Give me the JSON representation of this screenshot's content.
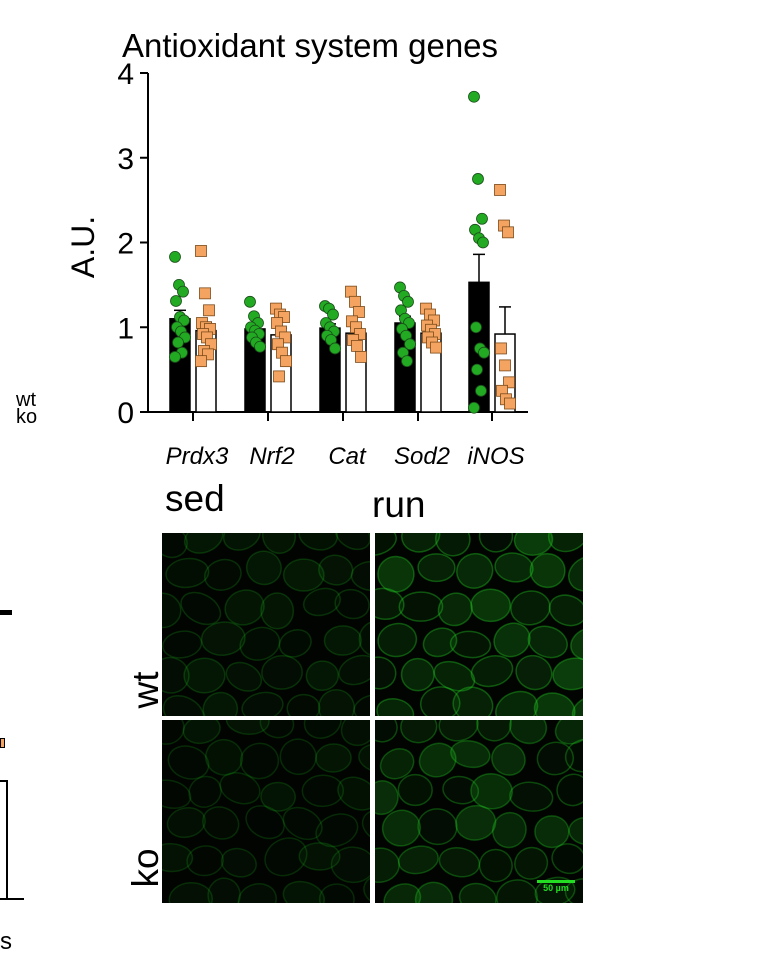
{
  "chart_data": {
    "type": "bar",
    "title": "Antioxidant system genes",
    "ylabel": "A.U.",
    "xlabel": "",
    "ylim": [
      0,
      4
    ],
    "yticks": [
      "0",
      "1",
      "2",
      "3",
      "4"
    ],
    "categories": [
      "Prdx3",
      "Nrf2",
      "Cat",
      "Sod2",
      "iNOS"
    ],
    "grid": false,
    "legend_position": "left",
    "series": [
      {
        "name": "wt",
        "bar_color": "#000000",
        "marker": "circle",
        "marker_color": "#22aa22",
        "means": [
          1.1,
          0.98,
          0.99,
          1.05,
          1.53
        ],
        "errors": [
          0.1,
          0.05,
          0.05,
          0.08,
          0.33
        ],
        "points": [
          [
            1.83,
            1.5,
            1.42,
            1.31,
            1.12,
            1.08,
            1.0,
            0.95,
            0.88,
            0.82,
            0.7,
            0.65
          ],
          [
            1.3,
            1.13,
            1.05,
            1.0,
            0.96,
            0.92,
            0.88,
            0.82,
            0.77
          ],
          [
            1.25,
            1.22,
            1.15,
            1.05,
            1.0,
            0.95,
            0.9,
            0.85,
            0.75
          ],
          [
            1.47,
            1.37,
            1.3,
            1.2,
            1.1,
            1.05,
            0.98,
            0.9,
            0.8,
            0.7,
            0.6
          ],
          [
            3.72,
            2.75,
            2.28,
            2.15,
            2.05,
            2.0,
            1.0,
            0.75,
            0.7,
            0.5,
            0.25,
            0.05
          ]
        ]
      },
      {
        "name": "ko",
        "bar_color": "#ffffff",
        "marker": "square",
        "marker_color": "#f4a460",
        "means": [
          0.96,
          0.91,
          0.93,
          0.93,
          0.92
        ],
        "errors": [
          0.1,
          0.08,
          0.06,
          0.05,
          0.32
        ],
        "points": [
          [
            1.9,
            1.4,
            1.2,
            1.05,
            1.0,
            0.98,
            0.92,
            0.88,
            0.8,
            0.72,
            0.68,
            0.6
          ],
          [
            1.22,
            1.15,
            1.12,
            1.05,
            0.95,
            0.88,
            0.8,
            0.7,
            0.6,
            0.42
          ],
          [
            1.42,
            1.3,
            1.18,
            1.07,
            1.0,
            0.92,
            0.85,
            0.78,
            0.65
          ],
          [
            1.22,
            1.15,
            1.08,
            1.02,
            0.97,
            0.92,
            0.88,
            0.82,
            0.76
          ],
          [
            2.62,
            2.2,
            2.12,
            0.75,
            0.55,
            0.35,
            0.25,
            0.15,
            0.1
          ]
        ]
      }
    ]
  },
  "microscopy": {
    "col_labels": [
      "sed",
      "run"
    ],
    "row_labels": [
      "wt",
      "ko"
    ],
    "scale_bar": "50 µm",
    "stain_color": "#22cc22"
  },
  "edge_fragments": {
    "letter": "s"
  }
}
